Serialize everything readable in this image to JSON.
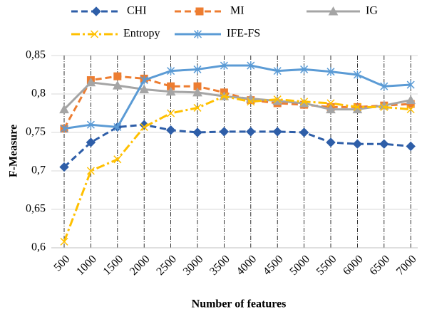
{
  "chart_data": {
    "type": "line",
    "categories": [
      "500",
      "1000",
      "1500",
      "2000",
      "2500",
      "3000",
      "3500",
      "4000",
      "4500",
      "5000",
      "5500",
      "6000",
      "6500",
      "7000"
    ],
    "series": [
      {
        "name": "CHI",
        "color": "#2e5ea8",
        "marker": "diamond",
        "dash": "dash",
        "values": [
          0.705,
          0.737,
          0.757,
          0.76,
          0.753,
          0.75,
          0.751,
          0.751,
          0.751,
          0.75,
          0.737,
          0.735,
          0.735,
          0.732
        ]
      },
      {
        "name": "MI",
        "color": "#ed7d31",
        "marker": "square",
        "dash": "dash",
        "values": [
          0.755,
          0.818,
          0.823,
          0.82,
          0.81,
          0.81,
          0.802,
          0.792,
          0.788,
          0.786,
          0.783,
          0.783,
          0.785,
          0.787
        ]
      },
      {
        "name": "IG",
        "color": "#a5a5a5",
        "marker": "triangle",
        "dash": "solid",
        "values": [
          0.78,
          0.815,
          0.811,
          0.806,
          0.803,
          0.802,
          0.797,
          0.794,
          0.791,
          0.788,
          0.78,
          0.78,
          0.785,
          0.792
        ]
      },
      {
        "name": "Entropy",
        "color": "#ffc000",
        "marker": "x",
        "dash": "dashdot",
        "values": [
          0.608,
          0.7,
          0.715,
          0.757,
          0.775,
          0.782,
          0.797,
          0.79,
          0.793,
          0.79,
          0.788,
          0.783,
          0.783,
          0.78
        ]
      },
      {
        "name": "IFE-FS",
        "color": "#5b9bd5",
        "marker": "star",
        "dash": "solid",
        "values": [
          0.755,
          0.76,
          0.757,
          0.818,
          0.83,
          0.832,
          0.837,
          0.837,
          0.83,
          0.832,
          0.829,
          0.825,
          0.81,
          0.812
        ]
      }
    ],
    "ylim": [
      0.6,
      0.85
    ],
    "yticks": [
      {
        "value": 0.6,
        "label": "0,6"
      },
      {
        "value": 0.65,
        "label": "0,65"
      },
      {
        "value": 0.7,
        "label": "0,7"
      },
      {
        "value": 0.75,
        "label": "0,75"
      },
      {
        "value": 0.8,
        "label": "0,8"
      },
      {
        "value": 0.85,
        "label": "0,85"
      }
    ],
    "xlabel": "Number of features",
    "ylabel": "F-Measure",
    "grid": true
  }
}
